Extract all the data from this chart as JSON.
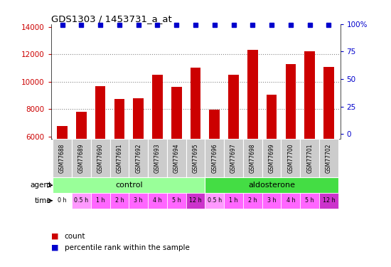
{
  "title": "GDS1303 / 1453731_a_at",
  "samples": [
    "GSM77688",
    "GSM77689",
    "GSM77690",
    "GSM77691",
    "GSM77692",
    "GSM77693",
    "GSM77694",
    "GSM77695",
    "GSM77696",
    "GSM77697",
    "GSM77698",
    "GSM77699",
    "GSM77700",
    "GSM77701",
    "GSM77702"
  ],
  "counts": [
    6750,
    7800,
    9650,
    8750,
    8800,
    10500,
    9600,
    11000,
    7950,
    10500,
    12300,
    9050,
    11300,
    12200,
    11050
  ],
  "percentile": [
    99,
    99,
    99,
    99,
    99,
    99,
    99,
    99,
    99,
    99,
    99,
    99,
    99,
    99,
    99
  ],
  "bar_color": "#cc0000",
  "dot_color": "#0000cc",
  "ylim_left": [
    5800,
    14200
  ],
  "ylim_right": [
    -4.65,
    100
  ],
  "yticks_left": [
    6000,
    8000,
    10000,
    12000,
    14000
  ],
  "yticks_right": [
    0,
    25,
    50,
    75,
    100
  ],
  "agent_labels": [
    "control",
    "aldosterone"
  ],
  "agent_colors": [
    "#99ff99",
    "#44dd44"
  ],
  "time_labels": [
    "0 h",
    "0.5 h",
    "1 h",
    "2 h",
    "3 h",
    "4 h",
    "5 h",
    "12 h",
    "0.5 h",
    "1 h",
    "2 h",
    "3 h",
    "4 h",
    "5 h",
    "12 h"
  ],
  "time_colors": [
    "#ffffff",
    "#ff99ff",
    "#ff66ff",
    "#ff66ff",
    "#ff66ff",
    "#ff66ff",
    "#ff66ff",
    "#cc33cc",
    "#ff99ff",
    "#ff66ff",
    "#ff66ff",
    "#ff66ff",
    "#ff66ff",
    "#ff66ff",
    "#cc33cc"
  ],
  "legend_count_color": "#cc0000",
  "legend_dot_color": "#0000cc",
  "grid_color": "#888888",
  "label_color_left": "#cc0000",
  "label_color_right": "#0000cc",
  "bar_width": 0.55,
  "sample_bg_color": "#cccccc",
  "plot_bg_color": "#ffffff",
  "fig_bg_color": "#ffffff"
}
